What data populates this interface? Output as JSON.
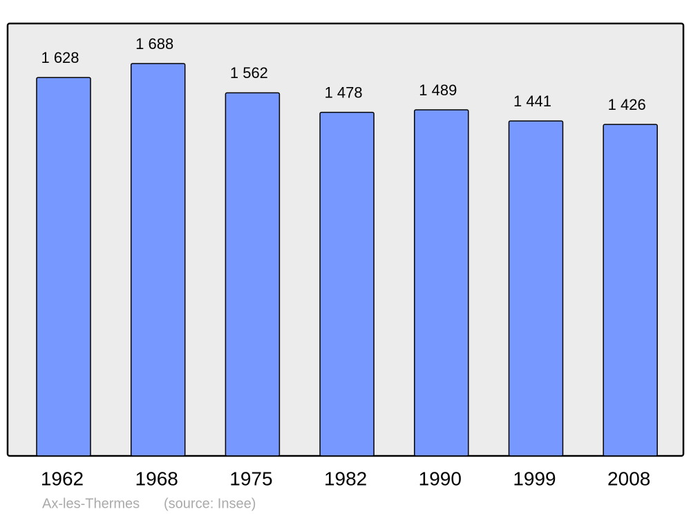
{
  "chart_data": {
    "type": "bar",
    "categories": [
      "1962",
      "1968",
      "1975",
      "1982",
      "1990",
      "1999",
      "2008"
    ],
    "values": [
      1628,
      1688,
      1562,
      1478,
      1489,
      1441,
      1426
    ],
    "value_labels": [
      "1 628",
      "1 688",
      "1 562",
      "1 478",
      "1 489",
      "1 441",
      "1 426"
    ],
    "color": "#7799ff",
    "place": "Ax-les-Thermes",
    "source": "(source: Insee)"
  }
}
